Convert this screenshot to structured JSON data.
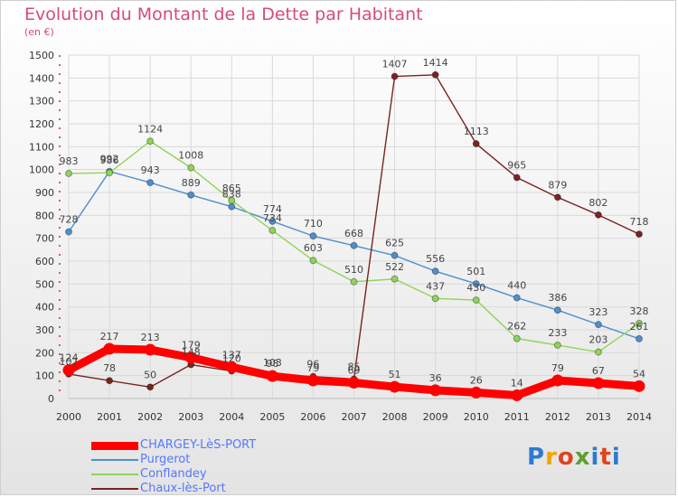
{
  "title": "Evolution du Montant de la Dette par Habitant",
  "subtitle": "(en €)",
  "brand": "Proxiti",
  "chart_data": {
    "type": "line",
    "title": "Evolution du Montant de la Dette par Habitant",
    "ylabel": "(en €)",
    "ylim": [
      0,
      1500
    ],
    "yticks": [
      0,
      100,
      200,
      300,
      400,
      500,
      600,
      700,
      800,
      900,
      1000,
      1100,
      1200,
      1300,
      1400,
      1500
    ],
    "x": [
      "2000",
      "2001",
      "2002",
      "2003",
      "2004",
      "2005",
      "2006",
      "2007",
      "2008",
      "2009",
      "2010",
      "2011",
      "2012",
      "2013",
      "2014"
    ],
    "legend_position": "bottom-left",
    "grid": true,
    "series": [
      {
        "name": "CHARGEY-LèS-PORT",
        "color": "#ff0000",
        "emphasis": true,
        "values": [
          124,
          217,
          213,
          179,
          137,
          98,
          79,
          69,
          51,
          36,
          26,
          14,
          79,
          67,
          54
        ]
      },
      {
        "name": "Purgerot",
        "color": "#4f8fce",
        "values": [
          728,
          992,
          943,
          889,
          838,
          774,
          710,
          668,
          625,
          556,
          501,
          440,
          386,
          323,
          261
        ]
      },
      {
        "name": "Conflandey",
        "color": "#8fd45a",
        "values": [
          983,
          986,
          1124,
          1008,
          865,
          734,
          603,
          510,
          522,
          437,
          430,
          262,
          233,
          203,
          328
        ]
      },
      {
        "name": "Chaux-lès-Port",
        "color": "#7a2320",
        "values": [
          107,
          78,
          50,
          148,
          120,
          103,
          96,
          85,
          1407,
          1414,
          1113,
          965,
          879,
          802,
          718
        ]
      }
    ]
  }
}
